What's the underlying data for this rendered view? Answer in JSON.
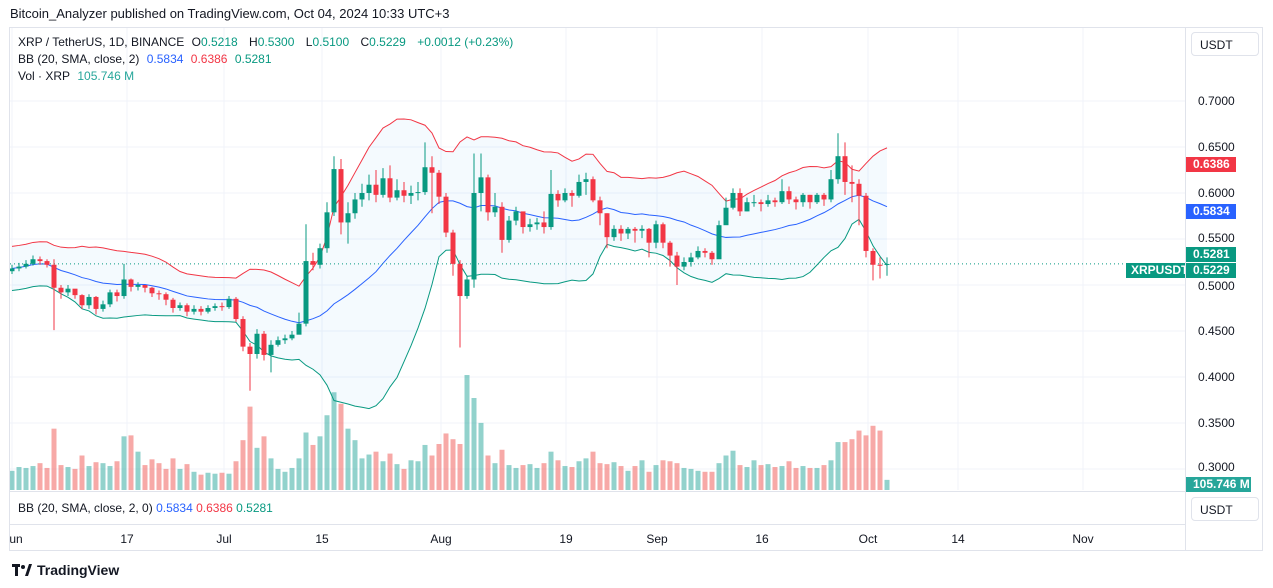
{
  "header": {
    "published": "Bitcoin_Analyzer published on TradingView.com, Oct 04, 2024 10:33 UTC+3"
  },
  "legend": {
    "symbol": "XRP / TetherUS, 1D, BINANCE",
    "o_label": "O",
    "o": "0.5218",
    "h_label": "H",
    "h": "0.5300",
    "l_label": "L",
    "l": "0.5100",
    "c_label": "C",
    "c": "0.5229",
    "change": "+0.0012 (+0.23%)",
    "bb_label": "BB (20, SMA, close, 2)",
    "bb_basis": "0.5834",
    "bb_upper": "0.6386",
    "bb_lower": "0.5281",
    "vol_label": "Vol · XRP",
    "vol": "105.746 M"
  },
  "bb_pane": {
    "label": "BB (20, SMA, close, 2, 0)",
    "basis": "0.5834",
    "upper": "0.6386",
    "lower": "0.5281",
    "unit": "USDT"
  },
  "price_axis": {
    "unit": "USDT",
    "ticks": [
      "0.7000",
      "0.6500",
      "0.6000",
      "0.5500",
      "0.5000",
      "0.4500",
      "0.4000",
      "0.3500",
      "0.3000"
    ],
    "labels": {
      "upper": "0.6386",
      "basis": "0.5834",
      "lower": "0.5281",
      "last": "0.5229",
      "volume": "105.746 M",
      "symbol": "XRPUSDT"
    }
  },
  "time_axis": [
    "un",
    "17",
    "Jul",
    "15",
    "Aug",
    "19",
    "Sep",
    "16",
    "Oct",
    "14",
    "Nov"
  ],
  "footer": {
    "brand": "TradingView"
  },
  "colors": {
    "up": "#089981",
    "down": "#f23645",
    "basis": "#2962ff",
    "upper": "#f23645",
    "lower": "#089981"
  },
  "chart_data": {
    "type": "candlestick",
    "start_date": "2024-06-01",
    "end_date": "2024-10-04",
    "interval": "1D",
    "ylim": [
      0.28,
      0.72
    ],
    "bollinger": {
      "length": 20,
      "ma": "SMA",
      "source": "close",
      "mult": 2
    },
    "close": [
      0.518,
      0.52,
      0.523,
      0.528,
      0.526,
      0.522,
      0.497,
      0.492,
      0.496,
      0.489,
      0.478,
      0.487,
      0.474,
      0.479,
      0.492,
      0.488,
      0.506,
      0.498,
      0.5,
      0.497,
      0.491,
      0.49,
      0.484,
      0.475,
      0.478,
      0.471,
      0.474,
      0.471,
      0.475,
      0.477,
      0.476,
      0.485,
      0.463,
      0.433,
      0.425,
      0.447,
      0.424,
      0.435,
      0.44,
      0.442,
      0.446,
      0.458,
      0.526,
      0.522,
      0.54,
      0.579,
      0.626,
      0.568,
      0.578,
      0.593,
      0.6,
      0.609,
      0.598,
      0.616,
      0.595,
      0.603,
      0.597,
      0.6,
      0.601,
      0.628,
      0.622,
      0.596,
      0.557,
      0.523,
      0.488,
      0.506,
      0.6,
      0.617,
      0.579,
      0.585,
      0.549,
      0.57,
      0.58,
      0.563,
      0.566,
      0.568,
      0.563,
      0.599,
      0.592,
      0.6,
      0.597,
      0.612,
      0.615,
      0.592,
      0.578,
      0.552,
      0.561,
      0.556,
      0.561,
      0.559,
      0.561,
      0.546,
      0.566,
      0.546,
      0.532,
      0.52,
      0.525,
      0.53,
      0.537,
      0.535,
      0.528,
      0.565,
      0.584,
      0.6,
      0.58,
      0.59,
      0.59,
      0.588,
      0.592,
      0.59,
      0.602,
      0.593,
      0.59,
      0.598,
      0.59,
      0.598,
      0.593,
      0.615,
      0.64,
      0.612,
      0.61,
      0.597,
      0.537,
      0.522,
      0.5218,
      0.5229
    ],
    "high": [
      0.522,
      0.524,
      0.527,
      0.532,
      0.531,
      0.528,
      0.528,
      0.5,
      0.5,
      0.495,
      0.49,
      0.49,
      0.488,
      0.483,
      0.495,
      0.495,
      0.523,
      0.507,
      0.503,
      0.5,
      0.498,
      0.494,
      0.492,
      0.486,
      0.481,
      0.48,
      0.478,
      0.477,
      0.478,
      0.48,
      0.481,
      0.488,
      0.487,
      0.466,
      0.437,
      0.452,
      0.45,
      0.44,
      0.444,
      0.446,
      0.45,
      0.47,
      0.566,
      0.535,
      0.545,
      0.59,
      0.64,
      0.637,
      0.59,
      0.6,
      0.61,
      0.62,
      0.625,
      0.627,
      0.63,
      0.615,
      0.612,
      0.608,
      0.612,
      0.655,
      0.64,
      0.625,
      0.6,
      0.56,
      0.527,
      0.51,
      0.643,
      0.643,
      0.62,
      0.6,
      0.59,
      0.575,
      0.585,
      0.578,
      0.572,
      0.573,
      0.58,
      0.625,
      0.603,
      0.605,
      0.603,
      0.62,
      0.622,
      0.618,
      0.596,
      0.578,
      0.565,
      0.565,
      0.563,
      0.563,
      0.565,
      0.562,
      0.57,
      0.568,
      0.548,
      0.536,
      0.53,
      0.535,
      0.542,
      0.54,
      0.537,
      0.57,
      0.595,
      0.605,
      0.605,
      0.595,
      0.598,
      0.593,
      0.598,
      0.595,
      0.615,
      0.607,
      0.596,
      0.6,
      0.598,
      0.6,
      0.6,
      0.625,
      0.665,
      0.655,
      0.63,
      0.615,
      0.6,
      0.54,
      0.53,
      0.53
    ],
    "low": [
      0.512,
      0.515,
      0.518,
      0.521,
      0.522,
      0.519,
      0.451,
      0.485,
      0.488,
      0.485,
      0.474,
      0.474,
      0.468,
      0.471,
      0.476,
      0.482,
      0.485,
      0.493,
      0.494,
      0.492,
      0.487,
      0.484,
      0.478,
      0.47,
      0.472,
      0.466,
      0.468,
      0.467,
      0.469,
      0.472,
      0.472,
      0.474,
      0.46,
      0.428,
      0.385,
      0.42,
      0.418,
      0.405,
      0.433,
      0.436,
      0.44,
      0.452,
      0.455,
      0.516,
      0.518,
      0.535,
      0.575,
      0.555,
      0.545,
      0.572,
      0.585,
      0.592,
      0.59,
      0.595,
      0.59,
      0.592,
      0.59,
      0.588,
      0.592,
      0.598,
      0.578,
      0.588,
      0.552,
      0.51,
      0.432,
      0.485,
      0.497,
      0.58,
      0.57,
      0.574,
      0.535,
      0.546,
      0.565,
      0.556,
      0.558,
      0.56,
      0.556,
      0.56,
      0.585,
      0.59,
      0.585,
      0.595,
      0.598,
      0.59,
      0.565,
      0.54,
      0.548,
      0.548,
      0.55,
      0.546,
      0.551,
      0.53,
      0.54,
      0.54,
      0.52,
      0.5,
      0.516,
      0.52,
      0.528,
      0.53,
      0.522,
      0.53,
      0.57,
      0.582,
      0.575,
      0.58,
      0.585,
      0.58,
      0.585,
      0.585,
      0.588,
      0.588,
      0.582,
      0.585,
      0.583,
      0.588,
      0.586,
      0.59,
      0.61,
      0.598,
      0.59,
      0.565,
      0.53,
      0.505,
      0.507,
      0.51
    ],
    "first_open": 0.515,
    "last_open": 0.5218,
    "volume_m": [
      200,
      240,
      230,
      250,
      280,
      230,
      640,
      260,
      240,
      220,
      360,
      250,
      290,
      280,
      250,
      300,
      560,
      570,
      400,
      260,
      320,
      280,
      220,
      330,
      220,
      270,
      190,
      160,
      180,
      170,
      180,
      170,
      300,
      520,
      870,
      440,
      560,
      330,
      220,
      190,
      230,
      330,
      600,
      470,
      560,
      780,
      1020,
      900,
      640,
      520,
      330,
      370,
      400,
      300,
      380,
      270,
      220,
      310,
      300,
      470,
      360,
      480,
      590,
      530,
      480,
      1200,
      960,
      700,
      360,
      280,
      420,
      260,
      230,
      260,
      270,
      230,
      280,
      400,
      310,
      250,
      240,
      300,
      330,
      400,
      280,
      270,
      290,
      250,
      200,
      250,
      310,
      190,
      260,
      310,
      300,
      280,
      230,
      220,
      200,
      190,
      190,
      280,
      360,
      410,
      260,
      240,
      310,
      260,
      270,
      240,
      250,
      300,
      230,
      250,
      230,
      230,
      260,
      310,
      500,
      500,
      530,
      620,
      570,
      670,
      620,
      105.746
    ]
  }
}
